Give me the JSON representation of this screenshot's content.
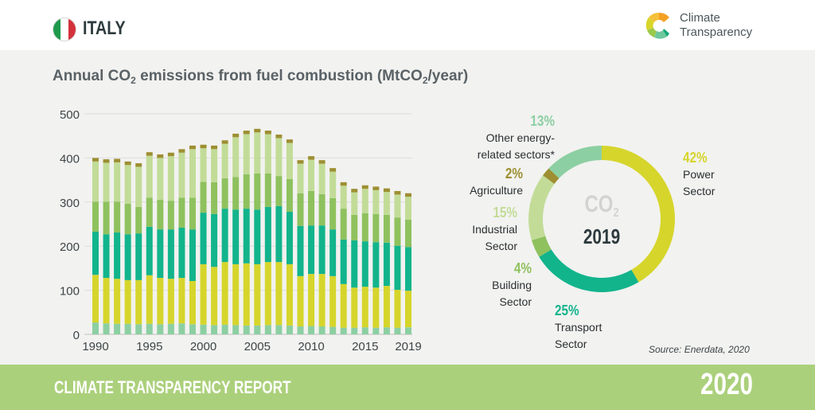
{
  "header": {
    "country": "ITALY",
    "flag_colors": [
      "#1e9a4b",
      "#ffffff",
      "#d3323c"
    ],
    "logo_line1": "Climate",
    "logo_line2": "Transparency"
  },
  "footer": {
    "title": "CLIMATE TRANSPARENCY REPORT",
    "year": "2020"
  },
  "source": "Source: Enerdata, 2020",
  "colors": {
    "other": "#8ccfa2",
    "power": "#d6d52c",
    "transport": "#12b48c",
    "building": "#8fc15e",
    "industrial": "#c2dc98",
    "agriculture": "#9d8f32",
    "footer": "#abd07b",
    "panel": "#f2f2f0"
  },
  "chart_data": [
    {
      "type": "bar",
      "stacked": true,
      "title": "Annual CO2 emissions from fuel combustion (MtCO2/year)",
      "title_parts": {
        "a": "Annual CO",
        "sub1": "2",
        "b": " emissions from fuel combustion (MtCO",
        "sub2": "2",
        "c": "/year)"
      },
      "xlabel": "",
      "ylabel": "",
      "ylim": [
        0,
        500
      ],
      "yticks": [
        0,
        100,
        200,
        300,
        400,
        500
      ],
      "grid": true,
      "x": [
        1990,
        1991,
        1992,
        1993,
        1994,
        1995,
        1996,
        1997,
        1998,
        1999,
        2000,
        2001,
        2002,
        2003,
        2004,
        2005,
        2006,
        2007,
        2008,
        2009,
        2010,
        2011,
        2012,
        2013,
        2014,
        2015,
        2016,
        2017,
        2018,
        2019
      ],
      "xtick_labels": [
        "1990",
        "1995",
        "2000",
        "2005",
        "2010",
        "2015",
        "2019"
      ],
      "series": [
        {
          "name": "Other energy-related sectors",
          "key": "other",
          "values": [
            27,
            25,
            24,
            24,
            23,
            24,
            23,
            24,
            25,
            23,
            22,
            21,
            22,
            21,
            20,
            20,
            21,
            21,
            20,
            18,
            19,
            18,
            17,
            15,
            15,
            16,
            15,
            16,
            15,
            16
          ]
        },
        {
          "name": "Power Sector",
          "key": "power",
          "values": [
            108,
            103,
            102,
            99,
            100,
            110,
            105,
            102,
            103,
            98,
            137,
            132,
            142,
            138,
            141,
            139,
            143,
            143,
            139,
            114,
            118,
            119,
            115,
            99,
            91,
            92,
            91,
            94,
            86,
            83
          ]
        },
        {
          "name": "Transport Sector",
          "key": "transport",
          "values": [
            98,
            99,
            105,
            104,
            106,
            110,
            110,
            112,
            114,
            117,
            117,
            120,
            121,
            124,
            124,
            124,
            125,
            127,
            119,
            114,
            110,
            110,
            106,
            101,
            107,
            103,
            103,
            98,
            100,
            99
          ]
        },
        {
          "name": "Building Sector",
          "key": "building",
          "values": [
            68,
            74,
            70,
            69,
            60,
            66,
            67,
            65,
            68,
            72,
            70,
            72,
            69,
            74,
            78,
            82,
            76,
            68,
            74,
            74,
            78,
            71,
            71,
            70,
            58,
            64,
            64,
            63,
            64,
            62
          ]
        },
        {
          "name": "Industrial Sector",
          "key": "industrial",
          "values": [
            91,
            88,
            89,
            88,
            91,
            95,
            95,
            101,
            102,
            110,
            76,
            75,
            78,
            90,
            91,
            93,
            89,
            86,
            82,
            67,
            71,
            69,
            60,
            52,
            51,
            55,
            54,
            52,
            52,
            52
          ]
        },
        {
          "name": "Agriculture",
          "key": "agriculture",
          "values": [
            8,
            8,
            8,
            8,
            8,
            8,
            8,
            8,
            8,
            8,
            8,
            8,
            8,
            8,
            8,
            8,
            8,
            8,
            8,
            8,
            8,
            8,
            8,
            8,
            8,
            8,
            8,
            8,
            8,
            8
          ]
        }
      ]
    },
    {
      "type": "pie",
      "donut": true,
      "title": "CO2 2019",
      "center_label": "CO",
      "center_sub": "2",
      "center_year": "2019",
      "slices": [
        {
          "key": "power",
          "label_line1": "Power",
          "label_line2": "Sector",
          "pct_label": "42%",
          "value": 42
        },
        {
          "key": "transport",
          "label_line1": "Transport",
          "label_line2": "Sector",
          "pct_label": "25%",
          "value": 25
        },
        {
          "key": "building",
          "label_line1": "Building",
          "label_line2": "Sector",
          "pct_label": "4%",
          "value": 4
        },
        {
          "key": "industrial",
          "label_line1": "Industrial",
          "label_line2": "Sector",
          "pct_label": "15%",
          "value": 15
        },
        {
          "key": "agriculture",
          "label_line1": "Agriculture",
          "label_line2": "",
          "pct_label": "2%",
          "value": 2
        },
        {
          "key": "other",
          "label_line1": "Other energy-",
          "label_line2": "related sectors*",
          "pct_label": "13%",
          "value": 13
        }
      ]
    }
  ]
}
